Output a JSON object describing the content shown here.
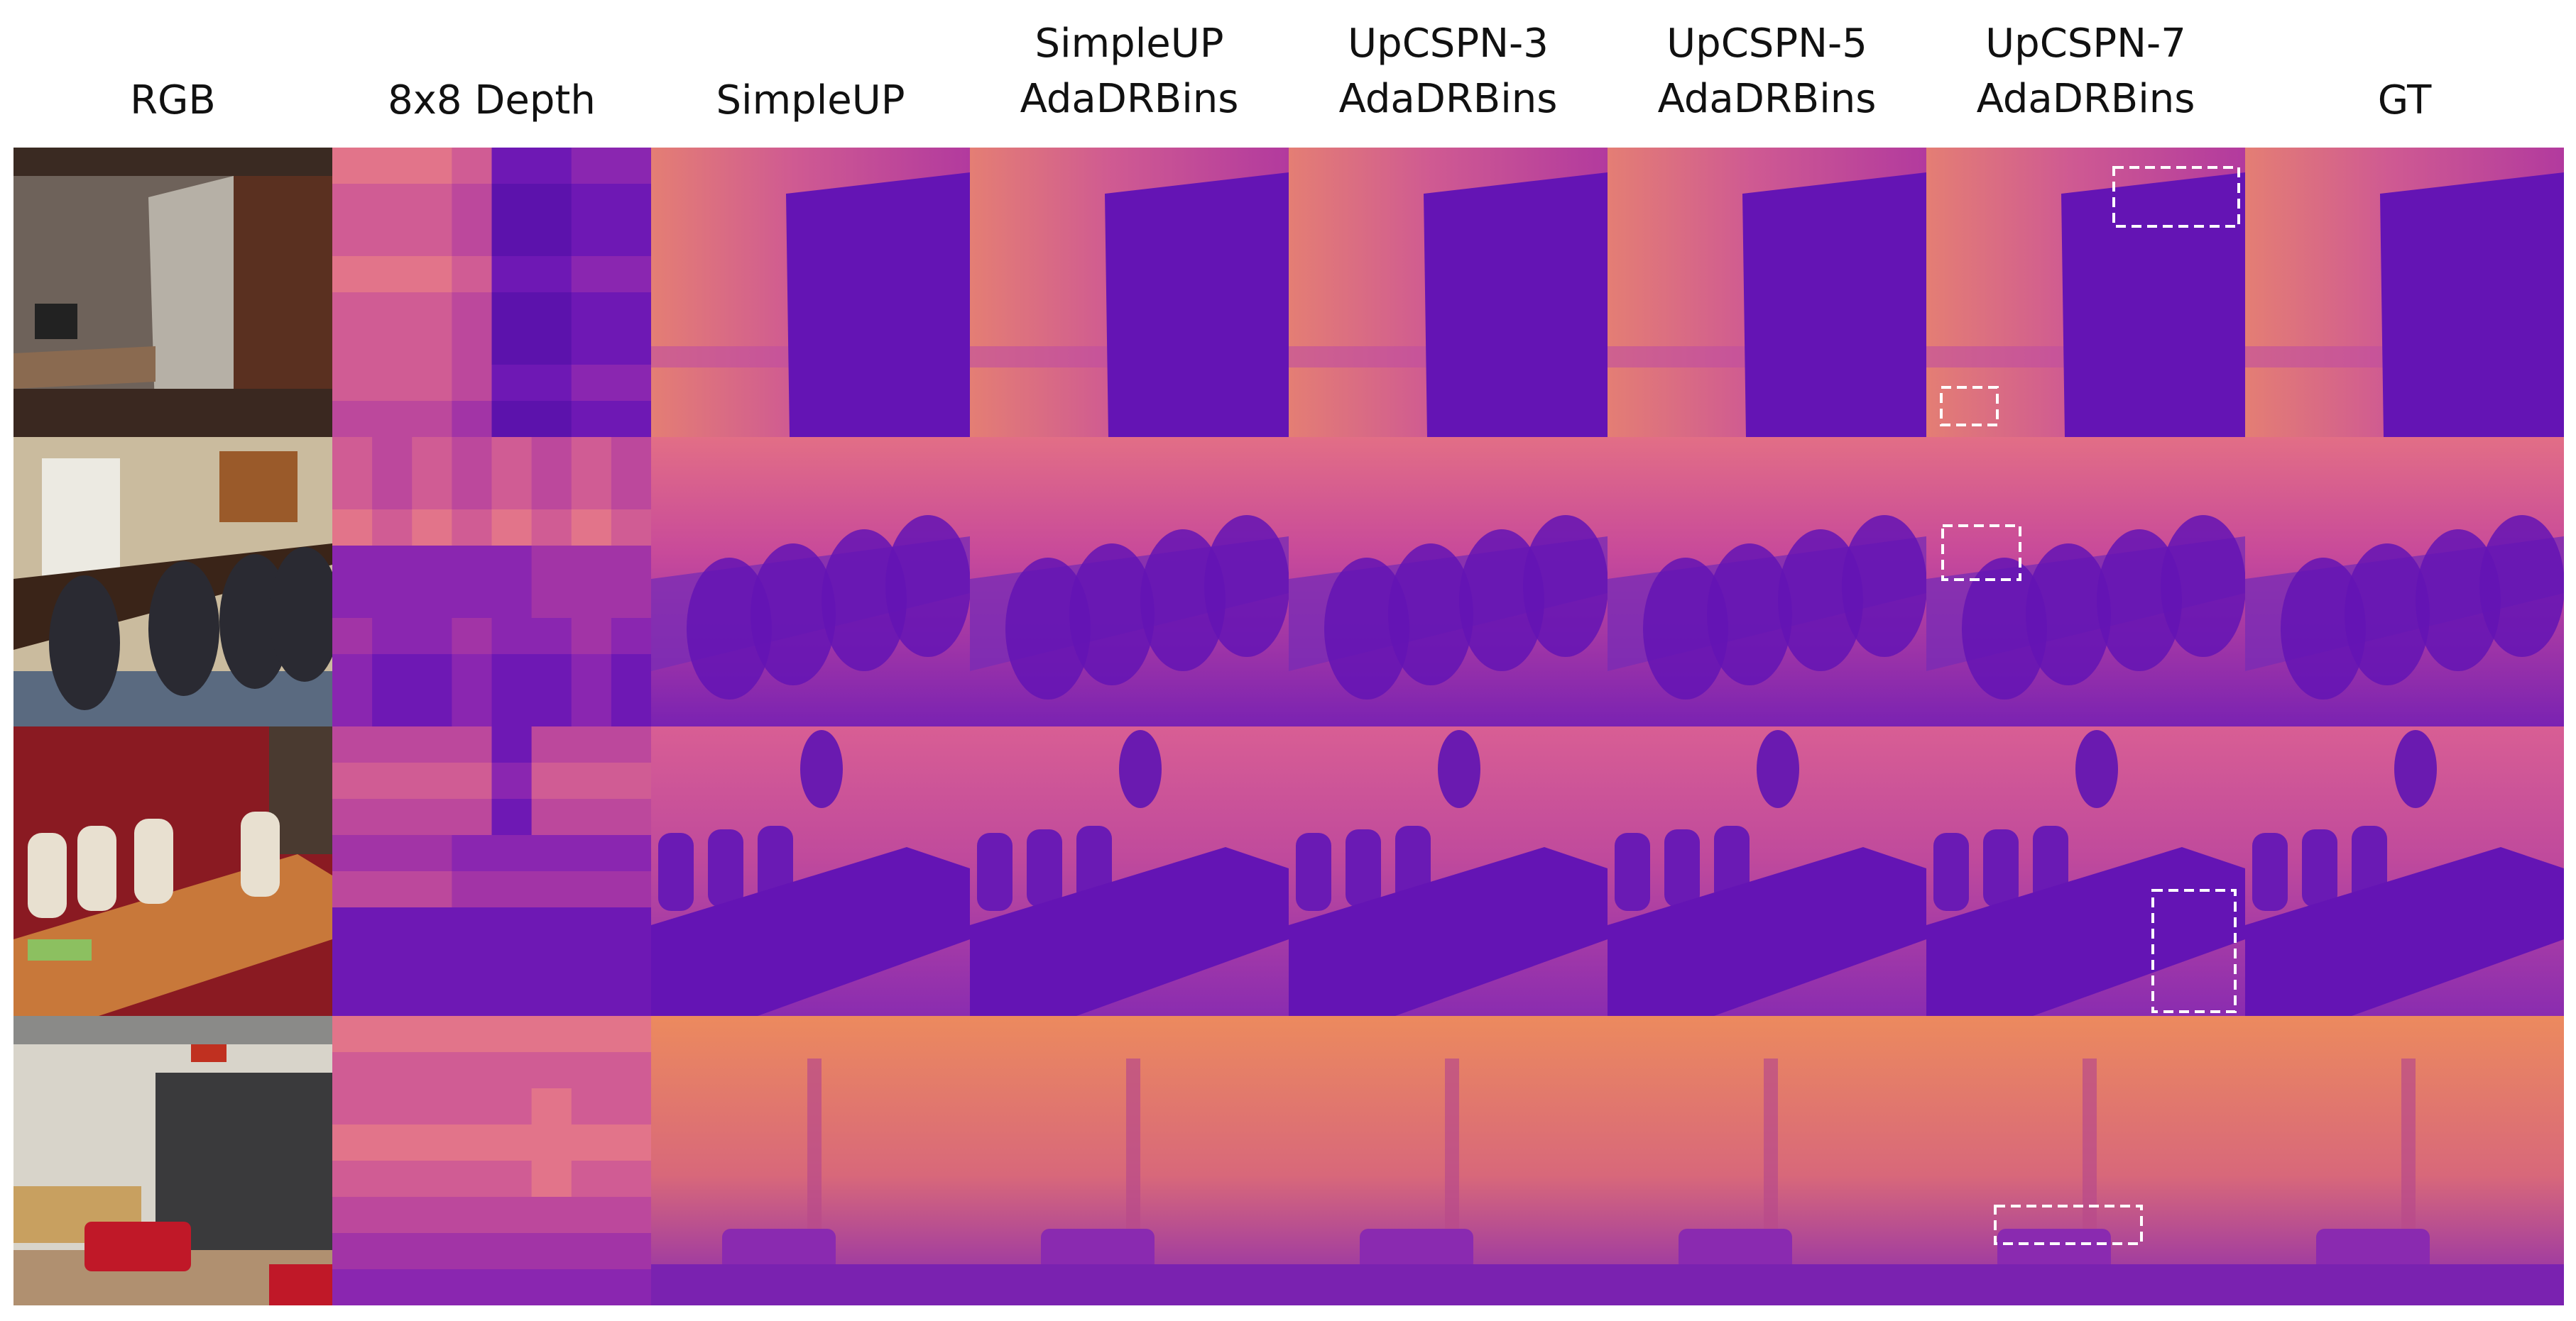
{
  "figure": {
    "columns": [
      {
        "lines": [
          "RGB"
        ]
      },
      {
        "lines": [
          "8x8 Depth"
        ]
      },
      {
        "lines": [
          "SimpleUP"
        ]
      },
      {
        "lines": [
          "SimpleUP",
          "AdaDRBins"
        ]
      },
      {
        "lines": [
          "UpCSPN-3",
          "AdaDRBins"
        ]
      },
      {
        "lines": [
          "UpCSPN-5",
          "AdaDRBins"
        ]
      },
      {
        "lines": [
          "UpCSPN-7",
          "AdaDRBins"
        ]
      },
      {
        "lines": [
          "GT"
        ]
      }
    ]
  }
}
